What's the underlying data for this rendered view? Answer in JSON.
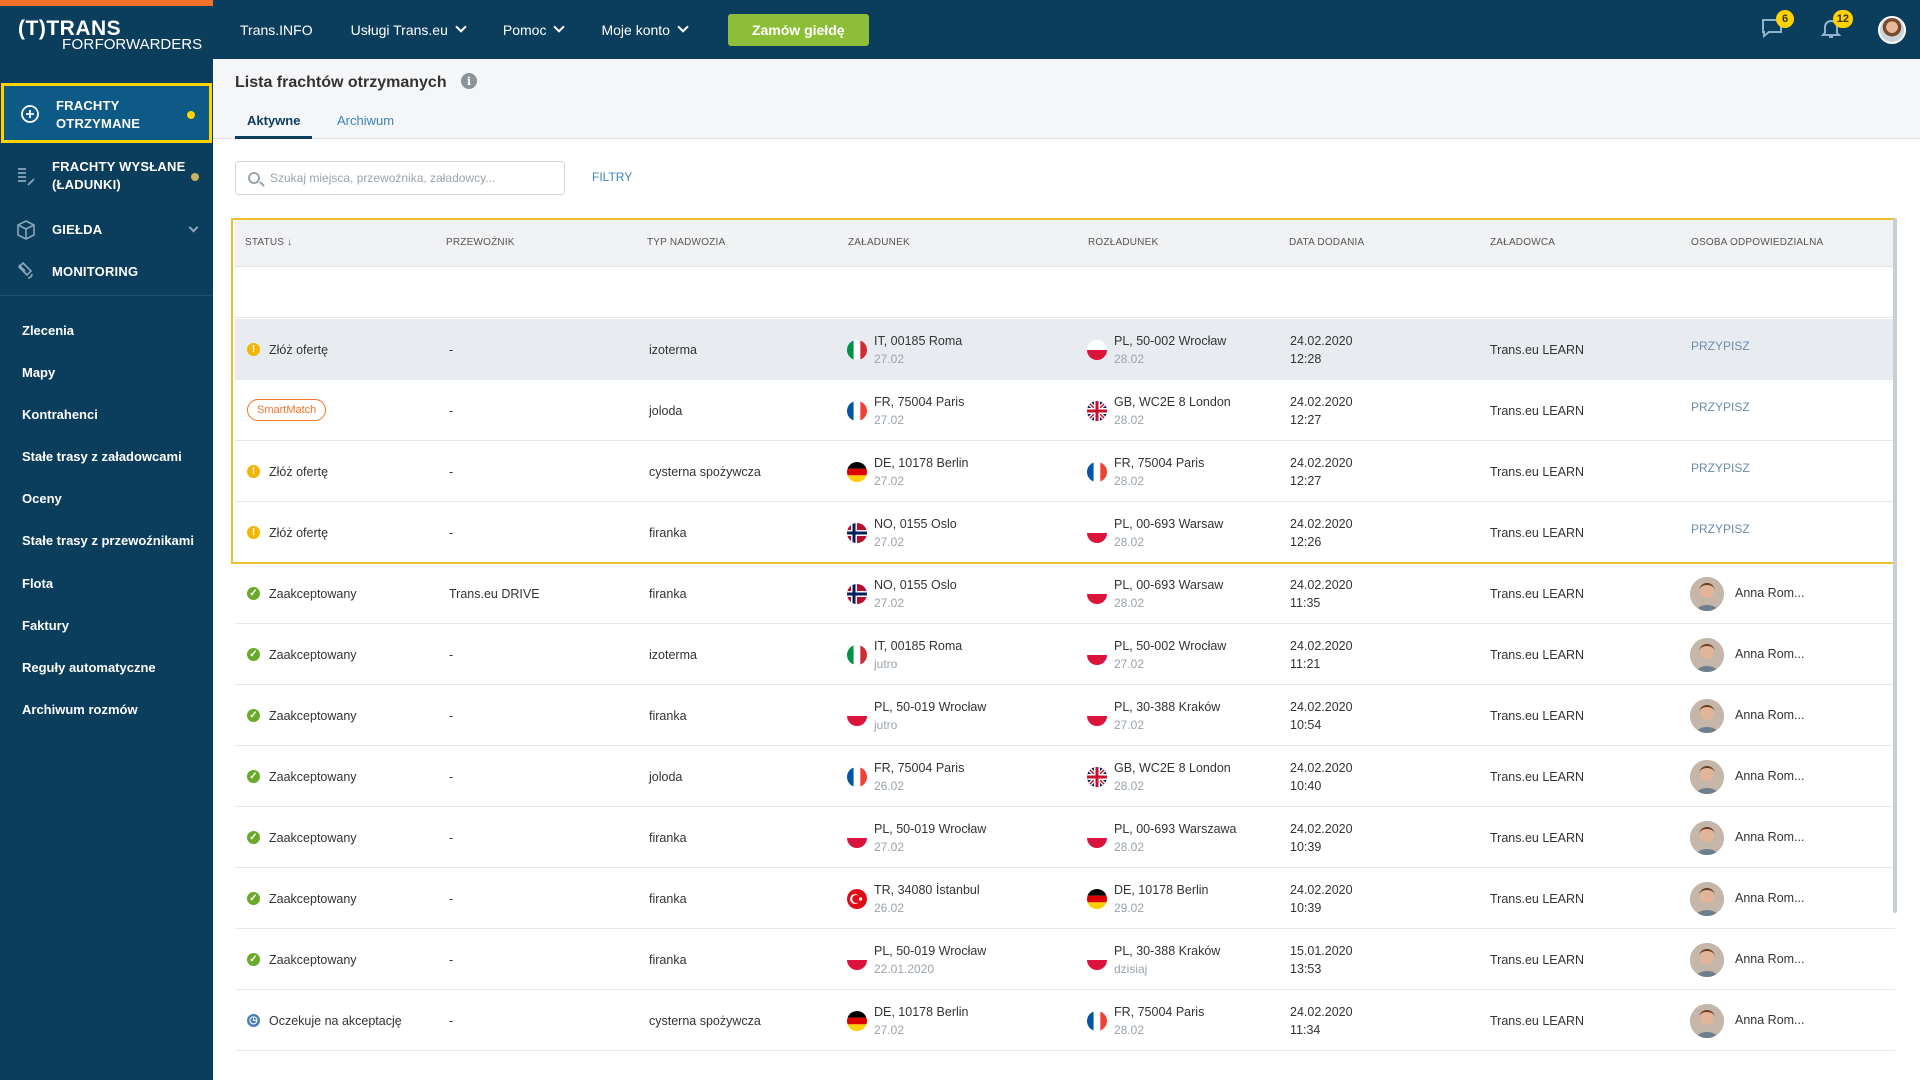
{
  "brand": {
    "line1": "TRANS",
    "prefix": "(T)",
    "line2_a": "FOR",
    "line2_b": "FORWARDERS"
  },
  "nav": {
    "items": [
      "Trans.INFO",
      "Usługi Trans.eu",
      "Pomoc",
      "Moje konto"
    ],
    "order_button": "Zamów giełdę"
  },
  "top_icons": {
    "messages_count": "6",
    "notifications_count": "12"
  },
  "sidebar": {
    "main": [
      {
        "label_l1": "FRACHTY",
        "label_l2": "OTRZYMANE"
      },
      {
        "label_l1": "FRACHTY WYSŁANE",
        "label_l2": "(ŁADUNKI)"
      },
      {
        "label_l1": "GIEŁDA"
      },
      {
        "label_l1": "MONITORING"
      }
    ],
    "sub": [
      "Zlecenia",
      "Mapy",
      "Kontrahenci",
      "Stałe trasy z załadowcami",
      "Oceny",
      "Stałe trasy z przewoźnikami",
      "Flota",
      "Faktury",
      "Reguły automatyczne",
      "Archiwum rozmów"
    ]
  },
  "page": {
    "title": "Lista frachtów otrzymanych",
    "tabs": [
      "Aktywne",
      "Archiwum"
    ],
    "search_placeholder": "Szukaj miejsca, przewoźnika, załadowcy...",
    "filters": "FILTRY"
  },
  "table": {
    "headers": [
      "STATUS ↓",
      "PRZEWOŹNIK",
      "TYP NADWOZIA",
      "ZAŁADUNEK",
      "ROZŁADUNEK",
      "DATA DODANIA",
      "ZAŁADOWCA",
      "OSOBA ODPOWIEDZIALNA"
    ],
    "rows": [
      {
        "status": "Złóż ofertę",
        "status_kind": "warn",
        "carrier": "-",
        "body": "izoterma",
        "load_flag": "it",
        "load": "IT, 00185 Roma",
        "load_date": "27.02",
        "unload_flag": "pl",
        "unload": "PL, 50-002 Wrocław",
        "unload_date": "28.02",
        "added_date": "24.02.2020",
        "added_time": "12:28",
        "shipper": "Trans.eu LEARN",
        "assign": "PRZYPISZ"
      },
      {
        "status": "SmartMatch",
        "status_kind": "smart",
        "carrier": "-",
        "body": "joloda",
        "load_flag": "fr",
        "load": "FR, 75004 Paris",
        "load_date": "27.02",
        "unload_flag": "gb",
        "unload": "GB, WC2E 8 London",
        "unload_date": "28.02",
        "added_date": "24.02.2020",
        "added_time": "12:27",
        "shipper": "Trans.eu LEARN",
        "assign": "PRZYPISZ"
      },
      {
        "status": "Złóż ofertę",
        "status_kind": "warn",
        "carrier": "-",
        "body": "cysterna spożywcza",
        "load_flag": "de",
        "load": "DE, 10178 Berlin",
        "load_date": "27.02",
        "unload_flag": "fr",
        "unload": "FR, 75004 Paris",
        "unload_date": "28.02",
        "added_date": "24.02.2020",
        "added_time": "12:27",
        "shipper": "Trans.eu LEARN",
        "assign": "PRZYPISZ"
      },
      {
        "status": "Złóż ofertę",
        "status_kind": "warn",
        "carrier": "-",
        "body": "firanka",
        "load_flag": "no",
        "load": "NO, 0155 Oslo",
        "load_date": "27.02",
        "unload_flag": "pl",
        "unload": "PL, 00-693 Warsaw",
        "unload_date": "28.02",
        "added_date": "24.02.2020",
        "added_time": "12:26",
        "shipper": "Trans.eu LEARN",
        "assign": "PRZYPISZ"
      },
      {
        "status": "Zaakceptowany",
        "status_kind": "ok",
        "carrier": "Trans.eu DRIVE",
        "body": "firanka",
        "load_flag": "no",
        "load": "NO, 0155 Oslo",
        "load_date": "27.02",
        "unload_flag": "pl",
        "unload": "PL, 00-693 Warsaw",
        "unload_date": "28.02",
        "added_date": "24.02.2020",
        "added_time": "11:35",
        "shipper": "Trans.eu LEARN",
        "person": "Anna Rom..."
      },
      {
        "status": "Zaakceptowany",
        "status_kind": "ok",
        "carrier": "-",
        "body": "izoterma",
        "load_flag": "it",
        "load": "IT, 00185 Roma",
        "load_date": "jutro",
        "unload_flag": "pl",
        "unload": "PL, 50-002 Wrocław",
        "unload_date": "27.02",
        "added_date": "24.02.2020",
        "added_time": "11:21",
        "shipper": "Trans.eu LEARN",
        "person": "Anna Rom..."
      },
      {
        "status": "Zaakceptowany",
        "status_kind": "ok",
        "carrier": "-",
        "body": "firanka",
        "load_flag": "pl",
        "load": "PL, 50-019 Wrocław",
        "load_date": "jutro",
        "unload_flag": "pl",
        "unload": "PL, 30-388 Kraków",
        "unload_date": "27.02",
        "added_date": "24.02.2020",
        "added_time": "10:54",
        "shipper": "Trans.eu LEARN",
        "person": "Anna Rom..."
      },
      {
        "status": "Zaakceptowany",
        "status_kind": "ok",
        "carrier": "-",
        "body": "joloda",
        "load_flag": "fr",
        "load": "FR, 75004 Paris",
        "load_date": "26.02",
        "unload_flag": "gb",
        "unload": "GB, WC2E 8 London",
        "unload_date": "28.02",
        "added_date": "24.02.2020",
        "added_time": "10:40",
        "shipper": "Trans.eu LEARN",
        "person": "Anna Rom..."
      },
      {
        "status": "Zaakceptowany",
        "status_kind": "ok",
        "carrier": "-",
        "body": "firanka",
        "load_flag": "pl",
        "load": "PL, 50-019 Wrocław",
        "load_date": "27.02",
        "unload_flag": "pl",
        "unload": "PL, 00-693 Warszawa",
        "unload_date": "28.02",
        "added_date": "24.02.2020",
        "added_time": "10:39",
        "shipper": "Trans.eu LEARN",
        "person": "Anna Rom..."
      },
      {
        "status": "Zaakceptowany",
        "status_kind": "ok",
        "carrier": "-",
        "body": "firanka",
        "load_flag": "tr",
        "load": "TR, 34080 İstanbul",
        "load_date": "26.02",
        "unload_flag": "de",
        "unload": "DE, 10178 Berlin",
        "unload_date": "29.02",
        "added_date": "24.02.2020",
        "added_time": "10:39",
        "shipper": "Trans.eu LEARN",
        "person": "Anna Rom..."
      },
      {
        "status": "Zaakceptowany",
        "status_kind": "ok",
        "carrier": "-",
        "body": "firanka",
        "load_flag": "pl",
        "load": "PL, 50-019 Wrocław",
        "load_date": "22.01.2020",
        "unload_flag": "pl",
        "unload": "PL, 30-388 Kraków",
        "unload_date": "dzisiaj",
        "added_date": "15.01.2020",
        "added_time": "13:53",
        "shipper": "Trans.eu LEARN",
        "person": "Anna Rom..."
      },
      {
        "status": "Oczekuje na akceptację",
        "status_kind": "wait",
        "carrier": "-",
        "body": "cysterna spożywcza",
        "load_flag": "de",
        "load": "DE, 10178 Berlin",
        "load_date": "27.02",
        "unload_flag": "fr",
        "unload": "FR, 75004 Paris",
        "unload_date": "28.02",
        "added_date": "24.02.2020",
        "added_time": "11:34",
        "shipper": "Trans.eu LEARN",
        "person": "Anna Rom..."
      }
    ]
  },
  "colors": {
    "navy": "#0b3d5c",
    "accent_orange": "#f2722c",
    "highlight_yellow": "#ffd200",
    "order_green": "#8cbe37",
    "ok_green": "#6aaa2b",
    "warn_yellow": "#f2b705"
  }
}
